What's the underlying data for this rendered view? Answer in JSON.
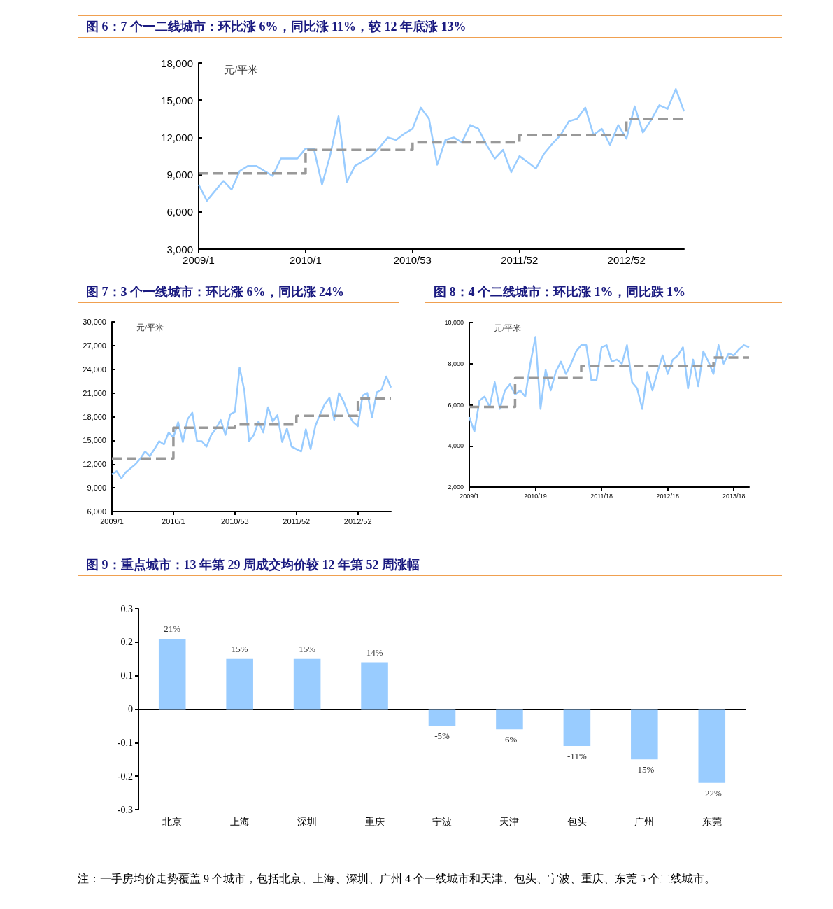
{
  "chart_data": [
    {
      "type": "line",
      "title": "图 6：7 个一二线城市：环比涨 6%，同比涨 11%，较 12 年底涨 13%",
      "ylabel": "元/平米",
      "marker": "none",
      "categories": [
        "2009/1",
        null,
        null,
        null,
        null,
        null,
        null,
        null,
        null,
        null,
        null,
        null,
        null,
        "2010/1",
        null,
        null,
        null,
        null,
        null,
        null,
        null,
        null,
        null,
        null,
        null,
        null,
        "2010/53",
        null,
        null,
        null,
        null,
        null,
        null,
        null,
        null,
        null,
        null,
        null,
        null,
        "2011/52",
        null,
        null,
        null,
        null,
        null,
        null,
        null,
        null,
        null,
        null,
        null,
        null,
        "2012/52",
        null,
        null,
        null,
        null,
        null,
        null,
        null
      ],
      "ylim": [
        3000,
        18000
      ],
      "yticks": [
        {
          "value": 3000,
          "label": "3,000"
        },
        {
          "value": 6000,
          "label": "6,000"
        },
        {
          "value": 9000,
          "label": "9,000"
        },
        {
          "value": 12000,
          "label": "12,000"
        },
        {
          "value": 15000,
          "label": "15,000"
        },
        {
          "value": 18000,
          "label": "18,000"
        }
      ],
      "series": [
        {
          "type": "line",
          "color": "#99ccff",
          "line_style": "solid",
          "values": [
            8200,
            6900,
            7700,
            8500,
            7800,
            9300,
            9700,
            9700,
            9300,
            8900,
            10300,
            10300,
            10300,
            11100,
            11100,
            8200,
            10600,
            13700,
            8400,
            9700,
            10100,
            10500,
            11200,
            12000,
            11800,
            12300,
            12700,
            14400,
            13500,
            9800,
            11800,
            12000,
            11600,
            13000,
            12700,
            11400,
            10300,
            11000,
            9200,
            10500,
            10000,
            9500,
            10700,
            11500,
            12200,
            13300,
            13500,
            14400,
            12200,
            12700,
            11400,
            13000,
            11900,
            14500,
            12400,
            13400,
            14600,
            14300,
            15900,
            14100
          ]
        },
        {
          "type": "step",
          "color": "#999999",
          "line_style": "dashed",
          "values": [
            9100,
            9100,
            9100,
            9100,
            9100,
            9100,
            9100,
            9100,
            9100,
            9100,
            9100,
            9100,
            9100,
            11000,
            11000,
            11000,
            11000,
            11000,
            11000,
            11000,
            11000,
            11000,
            11000,
            11000,
            11000,
            11000,
            11600,
            11600,
            11600,
            11600,
            11600,
            11600,
            11600,
            11600,
            11600,
            11600,
            11600,
            11600,
            11600,
            12200,
            12200,
            12200,
            12200,
            12200,
            12200,
            12200,
            12200,
            12200,
            12200,
            12200,
            12200,
            12200,
            13500,
            13500,
            13500,
            13500,
            13500,
            13500,
            13500,
            13500
          ]
        }
      ]
    },
    {
      "type": "line",
      "title": "图 7：3 个一线城市：环比涨 6%，同比涨 24%",
      "ylabel": "元/平米",
      "marker": "none",
      "categories": [
        "2009/1",
        null,
        null,
        null,
        null,
        null,
        null,
        null,
        null,
        null,
        null,
        null,
        null,
        "2010/1",
        null,
        null,
        null,
        null,
        null,
        null,
        null,
        null,
        null,
        null,
        null,
        null,
        "2010/53",
        null,
        null,
        null,
        null,
        null,
        null,
        null,
        null,
        null,
        null,
        null,
        null,
        "2011/52",
        null,
        null,
        null,
        null,
        null,
        null,
        null,
        null,
        null,
        null,
        null,
        null,
        "2012/52",
        null,
        null,
        null,
        null,
        null,
        null,
        null
      ],
      "ylim": [
        6000,
        30000
      ],
      "yticks": [
        {
          "value": 6000,
          "label": "6,000"
        },
        {
          "value": 9000,
          "label": "9,000"
        },
        {
          "value": 12000,
          "label": "12,000"
        },
        {
          "value": 15000,
          "label": "15,000"
        },
        {
          "value": 18000,
          "label": "18,000"
        },
        {
          "value": 21000,
          "label": "21,000"
        },
        {
          "value": 24000,
          "label": "24,000"
        },
        {
          "value": 27000,
          "label": "27,000"
        },
        {
          "value": 30000,
          "label": "30,000"
        }
      ],
      "series": [
        {
          "type": "line",
          "color": "#99ccff",
          "line_style": "solid",
          "values": [
            10700,
            11100,
            10200,
            11000,
            11500,
            12000,
            12700,
            13600,
            13000,
            13900,
            14900,
            14500,
            16000,
            15400,
            17300,
            14800,
            17700,
            18500,
            14900,
            14900,
            14200,
            15700,
            16500,
            17600,
            15700,
            18300,
            18600,
            24200,
            21300,
            14900,
            15700,
            17400,
            16000,
            19200,
            17400,
            18200,
            14800,
            16500,
            14200,
            13900,
            13600,
            16400,
            13900,
            16800,
            18300,
            19600,
            20400,
            17600,
            21000,
            19900,
            18300,
            17300,
            16800,
            20700,
            21000,
            17900,
            21100,
            21400,
            23100,
            21700
          ]
        },
        {
          "type": "step",
          "color": "#999999",
          "line_style": "dashed",
          "values": [
            12700,
            12700,
            12700,
            12700,
            12700,
            12700,
            12700,
            12700,
            12700,
            12700,
            12700,
            12700,
            12700,
            16600,
            16600,
            16600,
            16600,
            16600,
            16600,
            16600,
            16600,
            16600,
            16600,
            16600,
            16600,
            16600,
            17000,
            17000,
            17000,
            17000,
            17000,
            17000,
            17000,
            17000,
            17000,
            17000,
            17000,
            17000,
            17000,
            18100,
            18100,
            18100,
            18100,
            18100,
            18100,
            18100,
            18100,
            18100,
            18100,
            18100,
            18100,
            18100,
            20300,
            20300,
            20300,
            20300,
            20300,
            20300,
            20300,
            20300
          ]
        }
      ]
    },
    {
      "type": "line",
      "title": "图 8：4 个二线城市：环比涨 1%，同比跌 1%",
      "ylabel": "元/平米",
      "marker": "none",
      "categories": [
        "2009/1",
        null,
        null,
        null,
        null,
        null,
        null,
        null,
        null,
        null,
        null,
        null,
        null,
        "2010/19",
        null,
        null,
        null,
        null,
        null,
        null,
        null,
        null,
        null,
        null,
        null,
        null,
        "2011/18",
        null,
        null,
        null,
        null,
        null,
        null,
        null,
        null,
        null,
        null,
        null,
        null,
        "2012/18",
        null,
        null,
        null,
        null,
        null,
        null,
        null,
        null,
        null,
        null,
        null,
        null,
        "2013/18",
        null,
        null,
        null
      ],
      "ylim": [
        2000,
        10000
      ],
      "yticks": [
        {
          "value": 2000,
          "label": "2,000"
        },
        {
          "value": 4000,
          "label": "4,000"
        },
        {
          "value": 6000,
          "label": "6,000"
        },
        {
          "value": 8000,
          "label": "8,000"
        },
        {
          "value": 10000,
          "label": "10,000"
        }
      ],
      "series": [
        {
          "type": "line",
          "color": "#99ccff",
          "line_style": "solid",
          "values": [
            5400,
            4700,
            6200,
            6400,
            5900,
            7100,
            5800,
            6700,
            7000,
            6500,
            6700,
            6400,
            8000,
            9300,
            5800,
            7700,
            6700,
            7600,
            8100,
            7500,
            8000,
            8600,
            8900,
            8900,
            7200,
            7200,
            8800,
            8900,
            8100,
            8200,
            8000,
            8900,
            7100,
            6800,
            5800,
            7600,
            6700,
            7600,
            8400,
            7500,
            8200,
            8400,
            8800,
            6800,
            8200,
            6900,
            8600,
            8100,
            7500,
            8900,
            8000,
            8500,
            8400,
            8700,
            8900,
            8800
          ]
        },
        {
          "type": "step",
          "color": "#999999",
          "line_style": "dashed",
          "values": [
            5900,
            5900,
            5900,
            5900,
            5900,
            5900,
            5900,
            5900,
            5900,
            7300,
            7300,
            7300,
            7300,
            7300,
            7300,
            7300,
            7300,
            7300,
            7300,
            7300,
            7300,
            7300,
            7900,
            7900,
            7900,
            7900,
            7900,
            7900,
            7900,
            7900,
            7900,
            7900,
            7900,
            7900,
            7900,
            7900,
            7900,
            7900,
            7900,
            7900,
            7900,
            7900,
            7900,
            7900,
            7900,
            7900,
            7900,
            7900,
            8300,
            8300,
            8300,
            8300,
            8300,
            8300,
            8300,
            8300
          ]
        }
      ]
    },
    {
      "type": "bar",
      "title": "图 9：重点城市：13 年第 29 周成交均价较 12 年第 52 周涨幅",
      "categories": [
        "北京",
        "上海",
        "深圳",
        "重庆",
        "宁波",
        "天津",
        "包头",
        "广州",
        "东莞"
      ],
      "values": [
        0.21,
        0.15,
        0.15,
        0.14,
        -0.05,
        -0.06,
        -0.11,
        -0.15,
        -0.22
      ],
      "color": "#99ccff",
      "value_labels": [
        "21%",
        "15%",
        "15%",
        "14%",
        "-5%",
        "-6%",
        "-11%",
        "-15%",
        "-22%"
      ],
      "ylim": [
        -0.3,
        0.3
      ],
      "yticks": [
        -0.3,
        -0.2,
        -0.1,
        0,
        0.1,
        0.2,
        0.3
      ],
      "annotations": [
        "注：一手房均价走势覆盖 9 个城市，包括北京、上海、深圳、广州 4 个一线城市和天津、包头、宁波、重庆、东莞 5 个二线城市。"
      ]
    }
  ]
}
